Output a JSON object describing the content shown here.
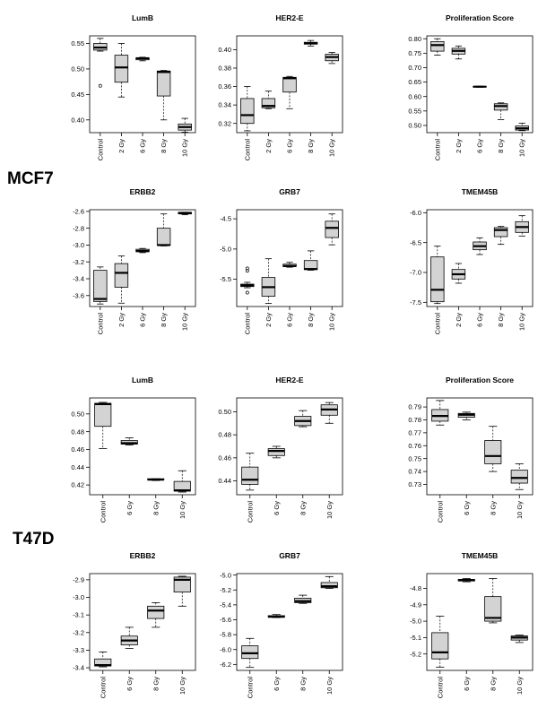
{
  "figure": {
    "cell_lines": [
      {
        "name": "MCF7"
      },
      {
        "name": "T47D"
      }
    ]
  },
  "chart_data": [
    {
      "type": "box",
      "cell_line": "MCF7",
      "title": "LumB",
      "categories": [
        "Control",
        "2 Gy",
        "6 Gy",
        "8 Gy",
        "10 Gy"
      ],
      "ylim": [
        0.375,
        0.565
      ],
      "yticks": [
        0.4,
        0.45,
        0.5,
        0.55
      ],
      "tick_labels": [
        "0.40",
        "0.45",
        "0.50",
        "0.55"
      ],
      "boxes": [
        {
          "min": 0.535,
          "q1": 0.537,
          "median": 0.542,
          "q3": 0.55,
          "max": 0.56,
          "outliers": [
            0.467
          ]
        },
        {
          "min": 0.445,
          "q1": 0.474,
          "median": 0.503,
          "q3": 0.527,
          "max": 0.55,
          "outliers": []
        },
        {
          "min": 0.516,
          "q1": 0.518,
          "median": 0.521,
          "q3": 0.522,
          "max": 0.523,
          "outliers": []
        },
        {
          "min": 0.4,
          "q1": 0.447,
          "median": 0.494,
          "q3": 0.496,
          "max": 0.497,
          "outliers": []
        },
        {
          "min": 0.376,
          "q1": 0.38,
          "median": 0.386,
          "q3": 0.392,
          "max": 0.403,
          "outliers": []
        }
      ]
    },
    {
      "type": "box",
      "cell_line": "MCF7",
      "title": "HER2-E",
      "categories": [
        "Control",
        "2 Gy",
        "6 Gy",
        "8 Gy",
        "10 Gy"
      ],
      "ylim": [
        0.31,
        0.415
      ],
      "yticks": [
        0.32,
        0.34,
        0.36,
        0.38,
        0.4
      ],
      "tick_labels": [
        "0.32",
        "0.34",
        "0.36",
        "0.38",
        "0.40"
      ],
      "boxes": [
        {
          "min": 0.312,
          "q1": 0.32,
          "median": 0.329,
          "q3": 0.347,
          "max": 0.36,
          "outliers": []
        },
        {
          "min": 0.336,
          "q1": 0.337,
          "median": 0.339,
          "q3": 0.347,
          "max": 0.355,
          "outliers": []
        },
        {
          "min": 0.336,
          "q1": 0.354,
          "median": 0.369,
          "q3": 0.37,
          "max": 0.371,
          "outliers": []
        },
        {
          "min": 0.404,
          "q1": 0.406,
          "median": 0.407,
          "q3": 0.408,
          "max": 0.41,
          "outliers": []
        },
        {
          "min": 0.385,
          "q1": 0.388,
          "median": 0.392,
          "q3": 0.395,
          "max": 0.397,
          "outliers": []
        }
      ]
    },
    {
      "type": "box",
      "cell_line": "MCF7",
      "title": "Proliferation Score",
      "categories": [
        "Control",
        "2 Gy",
        "6 Gy",
        "8 Gy",
        "10 Gy"
      ],
      "ylim": [
        0.475,
        0.81
      ],
      "yticks": [
        0.5,
        0.55,
        0.6,
        0.65,
        0.7,
        0.75,
        0.8
      ],
      "tick_labels": [
        "0.50",
        "0.55",
        "0.60",
        "0.65",
        "0.70",
        "0.75",
        "0.80"
      ],
      "boxes": [
        {
          "min": 0.743,
          "q1": 0.757,
          "median": 0.778,
          "q3": 0.79,
          "max": 0.8,
          "outliers": []
        },
        {
          "min": 0.73,
          "q1": 0.747,
          "median": 0.758,
          "q3": 0.767,
          "max": 0.775,
          "outliers": []
        },
        {
          "min": 0.632,
          "q1": 0.633,
          "median": 0.634,
          "q3": 0.635,
          "max": 0.636,
          "outliers": []
        },
        {
          "min": 0.52,
          "q1": 0.553,
          "median": 0.567,
          "q3": 0.575,
          "max": 0.578,
          "outliers": []
        },
        {
          "min": 0.482,
          "q1": 0.484,
          "median": 0.49,
          "q3": 0.498,
          "max": 0.508,
          "outliers": []
        }
      ]
    },
    {
      "type": "box",
      "cell_line": "MCF7",
      "title": "ERBB2",
      "categories": [
        "Control",
        "2 Gy",
        "6 Gy",
        "8 Gy",
        "10 Gy"
      ],
      "ylim": [
        -3.73,
        -2.58
      ],
      "yticks": [
        -3.6,
        -3.4,
        -3.2,
        -3.0,
        -2.8,
        -2.6
      ],
      "tick_labels": [
        "-3.6",
        "-3.4",
        "-3.2",
        "-3.0",
        "-2.8",
        "-2.6"
      ],
      "boxes": [
        {
          "min": -3.7,
          "q1": -3.67,
          "median": -3.64,
          "q3": -3.3,
          "max": -3.26,
          "outliers": []
        },
        {
          "min": -3.69,
          "q1": -3.5,
          "median": -3.33,
          "q3": -3.22,
          "max": -3.13,
          "outliers": []
        },
        {
          "min": -3.09,
          "q1": -3.08,
          "median": -3.07,
          "q3": -3.05,
          "max": -3.04,
          "outliers": []
        },
        {
          "min": -3.01,
          "q1": -3.0,
          "median": -3.0,
          "q3": -2.8,
          "max": -2.63,
          "outliers": []
        },
        {
          "min": -2.64,
          "q1": -2.63,
          "median": -2.62,
          "q3": -2.61,
          "max": -2.61,
          "outliers": []
        }
      ]
    },
    {
      "type": "box",
      "cell_line": "MCF7",
      "title": "GRB7",
      "categories": [
        "Control",
        "2 Gy",
        "6 Gy",
        "8 Gy",
        "10 Gy"
      ],
      "ylim": [
        -5.95,
        -4.35
      ],
      "yticks": [
        -5.5,
        -5.0,
        -4.5
      ],
      "tick_labels": [
        "-5.5",
        "-5.0",
        "-4.5"
      ],
      "boxes": [
        {
          "min": -5.64,
          "q1": -5.62,
          "median": -5.6,
          "q3": -5.58,
          "max": -5.55,
          "outliers": [
            -5.72,
            -5.36,
            -5.32
          ]
        },
        {
          "min": -5.9,
          "q1": -5.78,
          "median": -5.63,
          "q3": -5.47,
          "max": -5.16,
          "outliers": []
        },
        {
          "min": -5.3,
          "q1": -5.29,
          "median": -5.28,
          "q3": -5.25,
          "max": -5.22,
          "outliers": []
        },
        {
          "min": -5.35,
          "q1": -5.34,
          "median": -5.33,
          "q3": -5.19,
          "max": -5.03,
          "outliers": []
        },
        {
          "min": -4.93,
          "q1": -4.81,
          "median": -4.65,
          "q3": -4.54,
          "max": -4.42,
          "outliers": []
        }
      ]
    },
    {
      "type": "box",
      "cell_line": "MCF7",
      "title": "TMEM45B",
      "categories": [
        "Control",
        "2 Gy",
        "6 Gy",
        "8 Gy",
        "10 Gy"
      ],
      "ylim": [
        -7.57,
        -5.95
      ],
      "yticks": [
        -7.5,
        -7.0,
        -6.5,
        -6.0
      ],
      "tick_labels": [
        "-7.5",
        "-7.0",
        "-6.5",
        "-6.0"
      ],
      "boxes": [
        {
          "min": -7.52,
          "q1": -7.49,
          "median": -7.29,
          "q3": -6.74,
          "max": -6.56,
          "outliers": []
        },
        {
          "min": -7.18,
          "q1": -7.11,
          "median": -7.03,
          "q3": -6.95,
          "max": -6.85,
          "outliers": []
        },
        {
          "min": -6.7,
          "q1": -6.62,
          "median": -6.56,
          "q3": -6.49,
          "max": -6.42,
          "outliers": []
        },
        {
          "min": -6.53,
          "q1": -6.4,
          "median": -6.29,
          "q3": -6.25,
          "max": -6.23,
          "outliers": []
        },
        {
          "min": -6.39,
          "q1": -6.33,
          "median": -6.24,
          "q3": -6.15,
          "max": -6.05,
          "outliers": []
        }
      ]
    },
    {
      "type": "box",
      "cell_line": "T47D",
      "title": "LumB",
      "categories": [
        "Control",
        "6 Gy",
        "8 Gy",
        "10 Gy"
      ],
      "ylim": [
        0.409,
        0.518
      ],
      "yticks": [
        0.42,
        0.44,
        0.46,
        0.48,
        0.5
      ],
      "tick_labels": [
        "0.42",
        "0.44",
        "0.46",
        "0.48",
        "0.50"
      ],
      "boxes": [
        {
          "min": 0.461,
          "q1": 0.486,
          "median": 0.511,
          "q3": 0.512,
          "max": 0.513,
          "outliers": []
        },
        {
          "min": 0.465,
          "q1": 0.466,
          "median": 0.467,
          "q3": 0.47,
          "max": 0.473,
          "outliers": []
        },
        {
          "min": 0.425,
          "q1": 0.426,
          "median": 0.426,
          "q3": 0.427,
          "max": 0.427,
          "outliers": []
        },
        {
          "min": 0.412,
          "q1": 0.413,
          "median": 0.414,
          "q3": 0.424,
          "max": 0.436,
          "outliers": []
        }
      ]
    },
    {
      "type": "box",
      "cell_line": "T47D",
      "title": "HER2-E",
      "categories": [
        "Control",
        "6 Gy",
        "8 Gy",
        "10 Gy"
      ],
      "ylim": [
        0.428,
        0.512
      ],
      "yticks": [
        0.44,
        0.46,
        0.48,
        0.5
      ],
      "tick_labels": [
        "0.44",
        "0.46",
        "0.48",
        "0.50"
      ],
      "boxes": [
        {
          "min": 0.432,
          "q1": 0.437,
          "median": 0.441,
          "q3": 0.452,
          "max": 0.464,
          "outliers": []
        },
        {
          "min": 0.46,
          "q1": 0.462,
          "median": 0.466,
          "q3": 0.468,
          "max": 0.47,
          "outliers": []
        },
        {
          "min": 0.487,
          "q1": 0.488,
          "median": 0.492,
          "q3": 0.496,
          "max": 0.501,
          "outliers": []
        },
        {
          "min": 0.49,
          "q1": 0.497,
          "median": 0.502,
          "q3": 0.506,
          "max": 0.508,
          "outliers": []
        }
      ]
    },
    {
      "type": "box",
      "cell_line": "T47D",
      "title": "Proliferation Score",
      "categories": [
        "Control",
        "6 Gy",
        "8 Gy",
        "10 Gy"
      ],
      "ylim": [
        0.722,
        0.797
      ],
      "yticks": [
        0.73,
        0.74,
        0.75,
        0.76,
        0.77,
        0.78,
        0.79
      ],
      "tick_labels": [
        "0.73",
        "0.74",
        "0.75",
        "0.76",
        "0.77",
        "0.78",
        "0.79"
      ],
      "boxes": [
        {
          "min": 0.776,
          "q1": 0.779,
          "median": 0.783,
          "q3": 0.788,
          "max": 0.795,
          "outliers": []
        },
        {
          "min": 0.78,
          "q1": 0.782,
          "median": 0.784,
          "q3": 0.785,
          "max": 0.786,
          "outliers": []
        },
        {
          "min": 0.74,
          "q1": 0.746,
          "median": 0.752,
          "q3": 0.764,
          "max": 0.775,
          "outliers": []
        },
        {
          "min": 0.726,
          "q1": 0.731,
          "median": 0.735,
          "q3": 0.741,
          "max": 0.746,
          "outliers": []
        }
      ]
    },
    {
      "type": "box",
      "cell_line": "T47D",
      "title": "ERBB2",
      "categories": [
        "Control",
        "6 Gy",
        "8 Gy",
        "10 Gy"
      ],
      "ylim": [
        -3.415,
        -2.865
      ],
      "yticks": [
        -3.4,
        -3.3,
        -3.2,
        -3.1,
        -3.0,
        -2.9
      ],
      "tick_labels": [
        "-3.4",
        "-3.3",
        "-3.2",
        "-3.1",
        "-3.0",
        "-2.9"
      ],
      "boxes": [
        {
          "min": -3.395,
          "q1": -3.39,
          "median": -3.385,
          "q3": -3.35,
          "max": -3.31,
          "outliers": []
        },
        {
          "min": -3.29,
          "q1": -3.27,
          "median": -3.245,
          "q3": -3.22,
          "max": -3.17,
          "outliers": []
        },
        {
          "min": -3.17,
          "q1": -3.12,
          "median": -3.075,
          "q3": -3.05,
          "max": -3.03,
          "outliers": []
        },
        {
          "min": -3.05,
          "q1": -2.97,
          "median": -2.9,
          "q3": -2.885,
          "max": -2.88,
          "outliers": []
        }
      ]
    },
    {
      "type": "box",
      "cell_line": "T47D",
      "title": "GRB7",
      "categories": [
        "Control",
        "6 Gy",
        "8 Gy",
        "10 Gy"
      ],
      "ylim": [
        -6.28,
        -4.98
      ],
      "yticks": [
        -6.2,
        -6.0,
        -5.8,
        -5.6,
        -5.4,
        -5.2,
        -5.0
      ],
      "tick_labels": [
        "-6.2",
        "-6.0",
        "-5.8",
        "-5.6",
        "-5.4",
        "-5.2",
        "-5.0"
      ],
      "boxes": [
        {
          "min": -6.24,
          "q1": -6.12,
          "median": -6.05,
          "q3": -5.95,
          "max": -5.85,
          "outliers": []
        },
        {
          "min": -5.57,
          "q1": -5.565,
          "median": -5.56,
          "q3": -5.545,
          "max": -5.53,
          "outliers": []
        },
        {
          "min": -5.38,
          "q1": -5.37,
          "median": -5.35,
          "q3": -5.31,
          "max": -5.27,
          "outliers": []
        },
        {
          "min": -5.18,
          "q1": -5.17,
          "median": -5.15,
          "q3": -5.1,
          "max": -5.02,
          "outliers": []
        }
      ]
    },
    {
      "type": "box",
      "cell_line": "T47D",
      "title": "TMEM45B",
      "categories": [
        "Control",
        "6 Gy",
        "8 Gy",
        "10 Gy"
      ],
      "ylim": [
        -5.3,
        -4.71
      ],
      "yticks": [
        -5.2,
        -5.1,
        -5.0,
        -4.9,
        -4.8
      ],
      "tick_labels": [
        "-5.2",
        "-5.1",
        "-5.0",
        "-4.9",
        "-4.8"
      ],
      "boxes": [
        {
          "min": -5.28,
          "q1": -5.23,
          "median": -5.19,
          "q3": -5.07,
          "max": -4.97,
          "outliers": []
        },
        {
          "min": -4.76,
          "q1": -4.755,
          "median": -4.75,
          "q3": -4.745,
          "max": -4.74,
          "outliers": []
        },
        {
          "min": -5.01,
          "q1": -5.0,
          "median": -4.98,
          "q3": -4.85,
          "max": -4.74,
          "outliers": []
        },
        {
          "min": -5.13,
          "q1": -5.115,
          "median": -5.1,
          "q3": -5.09,
          "max": -5.085,
          "outliers": []
        }
      ]
    }
  ]
}
